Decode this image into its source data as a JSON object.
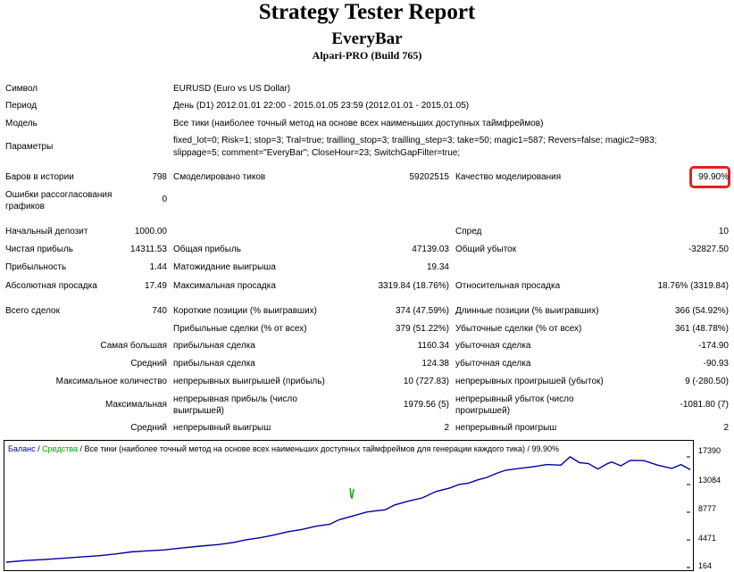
{
  "header": {
    "title": "Strategy Tester Report",
    "subtitle": "EveryBar",
    "server": "Alpari-PRO (Build 765)"
  },
  "rows": {
    "symbol": {
      "label": "Символ",
      "value": "EURUSD (Euro vs US Dollar)"
    },
    "period": {
      "label": "Период",
      "value": "День (D1) 2012.01.01 22:00 - 2015.01.05 23:59 (2012.01.01 - 2015.01.05)"
    },
    "model": {
      "label": "Модель",
      "value": "Все тики (наиболее точный метод на основе всех наименьших доступных таймфреймов)"
    },
    "params": {
      "label": "Параметры",
      "line1": "fixed_lot=0; Risk=1; stop=3; Tral=true; trailling_stop=3; trailling_step=3; take=50; magic1=587; Revers=false; magic2=983;",
      "line2": "slippage=5; comment=\"EveryBar\"; CloseHour=23; SwitchGapFilter=true;"
    },
    "bars": {
      "label": "Баров в истории",
      "value": "798"
    },
    "ticks": {
      "label": "Смоделировано тиков",
      "value": "59202515"
    },
    "quality": {
      "label": "Качество моделирования",
      "value": "99.90%"
    },
    "errors": {
      "label": "Ошибки рассогласования графиков",
      "value": "0"
    },
    "deposit": {
      "label": "Начальный депозит",
      "value": "1000.00"
    },
    "spread": {
      "label": "Спред",
      "value": "10"
    },
    "net_profit": {
      "label": "Чистая прибыль",
      "value": "14311.53"
    },
    "gross_profit": {
      "label": "Общая прибыль",
      "value": "47139.03"
    },
    "gross_loss": {
      "label": "Общий убыток",
      "value": "-32827.50"
    },
    "profit_factor": {
      "label": "Прибыльность",
      "value": "1.44"
    },
    "expected": {
      "label": "Матожидание выигрыша",
      "value": "19.34"
    },
    "abs_dd": {
      "label": "Абсолютная просадка",
      "value": "17.49"
    },
    "max_dd": {
      "label": "Максимальная просадка",
      "value": "3319.84 (18.76%)"
    },
    "rel_dd": {
      "label": "Относительная просадка",
      "value": "18.76% (3319.84)"
    },
    "total_trades": {
      "label": "Всего сделок",
      "value": "740"
    },
    "short_pos": {
      "label": "Короткие позиции (% выигравших)",
      "value": "374 (47.59%)"
    },
    "long_pos": {
      "label": "Длинные позиции (% выигравших)",
      "value": "366 (54.92%)"
    },
    "profit_trades": {
      "label": "Прибыльные сделки (% от всех)",
      "value": "379 (51.22%)"
    },
    "loss_trades": {
      "label": "Убыточные сделки (% от всех)",
      "value": "361 (48.78%)"
    },
    "largest": {
      "label": "Самая большая",
      "profit_label": "прибыльная сделка",
      "profit": "1160.34",
      "loss_label": "убыточная сделка",
      "loss": "-174.90"
    },
    "average": {
      "label": "Средний",
      "profit_label": "прибыльная сделка",
      "profit": "124.38",
      "loss_label": "убыточная сделка",
      "loss": "-90.93"
    },
    "max_count": {
      "label": "Максимальное количество",
      "profit_label": "непрерывных выигрышей (прибыль)",
      "profit": "10 (727.83)",
      "loss_label": "непрерывных проигрышей (убыток)",
      "loss": "9 (-280.50)"
    },
    "maximal": {
      "label": "Максимальная",
      "profit_label": "непрерывная прибыль (число выигрышей)",
      "profit": "1979.56 (5)",
      "loss_label": "непрерывный убыток (число проигрышей)",
      "loss": "-1081.80 (7)"
    },
    "avg_consec": {
      "label": "Средний",
      "profit_label": "непрерывный выигрыш",
      "profit": "2",
      "loss_label": "непрерывный проигрыш",
      "loss": "2"
    }
  },
  "chart_legend": {
    "balance": "Баланс",
    "sep": " / ",
    "equity": "Средства",
    "rest": " / Все тики (наиболее точный метод на основе всех наименьших доступных таймфреймов для генерации каждого тика) / 99.90%"
  },
  "colors": {
    "balance": "#0000a0",
    "equity": "#00a000",
    "highlight": "#e2231a"
  },
  "chart_data": {
    "type": "line",
    "y_ticks": [
      "17390",
      "13084",
      "8777",
      "4471",
      "164"
    ],
    "ylim": [
      164,
      17390
    ],
    "xlim": [
      0,
      740
    ],
    "series": [
      {
        "name": "Баланс",
        "x": [
          0,
          20,
          40,
          60,
          80,
          100,
          120,
          135,
          150,
          170,
          190,
          210,
          230,
          245,
          260,
          275,
          290,
          305,
          320,
          335,
          350,
          360,
          375,
          390,
          400,
          410,
          420,
          435,
          450,
          465,
          480,
          490,
          500,
          510,
          520,
          530,
          540,
          555,
          570,
          585,
          600,
          610,
          620,
          630,
          640,
          650,
          655,
          665,
          675,
          690,
          705,
          720,
          730,
          740
        ],
        "y": [
          1000,
          1250,
          1400,
          1600,
          1800,
          2000,
          2300,
          2600,
          2750,
          2900,
          3200,
          3500,
          3750,
          4050,
          4500,
          4800,
          5250,
          5750,
          6100,
          6600,
          6900,
          7600,
          8200,
          8800,
          9000,
          9150,
          9900,
          10500,
          11000,
          12000,
          12550,
          13100,
          13300,
          13800,
          14200,
          14800,
          15300,
          15600,
          15850,
          16200,
          16100,
          17400,
          16500,
          16350,
          15500,
          16300,
          16600,
          16000,
          16850,
          16800,
          16100,
          15600,
          16200,
          15400
        ]
      },
      {
        "name": "Средства",
        "x": [
          372,
          373,
          374,
          375,
          376
        ],
        "y": [
          12500,
          11300,
          10900,
          11800,
          12400
        ]
      }
    ]
  }
}
